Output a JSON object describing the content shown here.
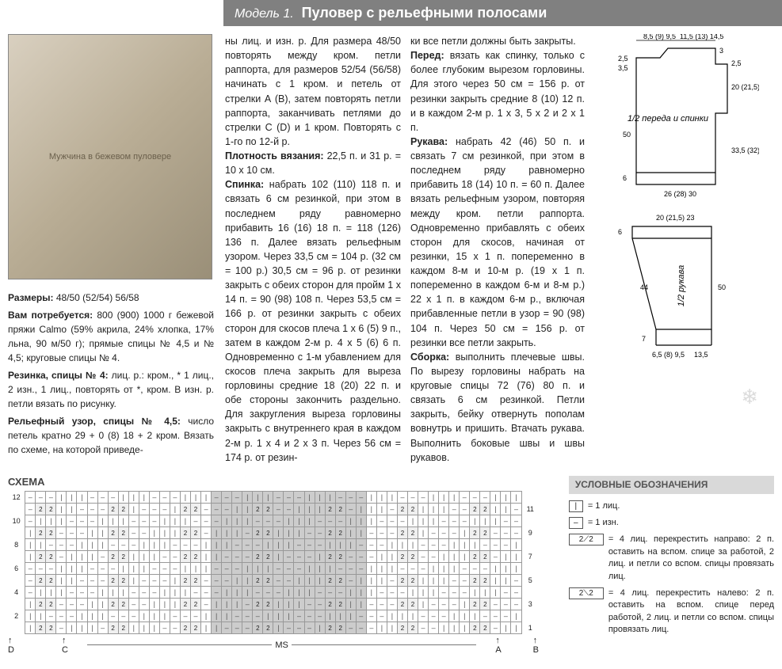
{
  "header": {
    "model": "Модель 1.",
    "title": "Пуловер с рельефными полосами"
  },
  "photo_alt": "Мужчина в бежевом пуловере",
  "left": {
    "sizes_label": "Размеры:",
    "sizes": "48/50 (52/54) 56/58",
    "need_label": "Вам потребуется:",
    "need": "800 (900) 1000 г бежевой пряжи Calmo (59% акрила, 24% хлопка, 17% льна, 90 м/50 г); прямые спицы № 4,5 и № 4,5; круговые спицы № 4.",
    "rib_label": "Резинка, спицы № 4:",
    "rib": "лиц. р.: кром., * 1 лиц., 2 изн., 1 лиц., повторять от *, кром. В изн. р. петли вязать по рисунку.",
    "relief_label": "Рельефный узор, спицы № 4,5:",
    "relief": "число петель кратно 29 + 0 (8) 18 + 2 кром. Вязать по схеме, на которой приведе-"
  },
  "col2": {
    "p1": "ны лиц. и изн. р. Для размера 48/50 повторять между кром. петли раппорта, для размеров 52/54 (56/58) начинать с 1 кром. и петель от стрелки А (В), затем повторять петли раппорта, заканчивать петлями до стрелки С (D) и 1 кром. Повторять с 1-го по 12-й р.",
    "density_label": "Плотность вязания:",
    "density": "22,5 п. и 31 р. = 10 x 10 см.",
    "back_label": "Спинка:",
    "back": "набрать 102 (110) 118 п. и связать 6 см резинкой, при этом в последнем ряду равномерно прибавить 16 (16) 18 п. = 118 (126) 136 п. Далее вязать рельефным узором. Через 33,5 см = 104 р. (32 см = 100 р.) 30,5 см = 96 р. от резинки закрыть с обеих сторон для пройм 1 x 14 п. = 90 (98) 108 п. Через 53,5 см = 166 р. от резинки закрыть с обеих сторон для скосов плеча 1 x 6 (5) 9 п., затем в каждом 2-м р. 4 x 5 (6) 6 п. Одновременно с 1-м убавлением для скосов плеча закрыть для выреза горловины средние 18 (20) 22 п. и обе стороны закончить раздельно. Для закругления выреза горловины закрыть с внутреннего края в каждом 2-м р. 1 x 4 и 2 x 3 п. Через 56 см = 174 р. от резин-"
  },
  "col3": {
    "p1": "ки все петли должны быть закрыты.",
    "front_label": "Перед:",
    "front": "вязать как спинку, только с более глубоким вырезом горловины. Для этого через 50 см = 156 р. от резинки закрыть средние 8 (10) 12 п. и в каждом 2-м р. 1 x 3, 5 x 2 и 2 x 1 п.",
    "sleeve_label": "Рукава:",
    "sleeve": "набрать 42 (46) 50 п. и связать 7 см резинкой, при этом в последнем ряду равномерно прибавить 18 (14) 10 п. = 60 п. Далее вязать рельефным узором, повторяя между кром. петли раппорта. Одновременно прибавлять с обеих сторон для скосов, начиная от резинки, 15 x 1 п. попеременно в каждом 8-м и 10-м р. (19 x 1 п. попеременно в каждом 6-м и 8-м р.) 22 x 1 п. в каждом 6-м р., включая прибавленные петли в узор = 90 (98) 104 п. Через 50 см = 156 р. от резинки все петли закрыть.",
    "assembly_label": "Сборка:",
    "assembly": "выполнить плечевые швы. По вырезу горловины набрать на круговые спицы 72 (76) 80 п. и связать 6 см резинкой. Петли закрыть, бейку отвернуть пополам вовнутрь и пришить. Втачать рукава. Выполнить боковые швы и швы рукавов."
  },
  "diagrams": {
    "body": {
      "label": "1/2 переда и спинки",
      "top_left_nums": "8,5 (9) 9,5",
      "top_mid_nums": "11,5 (13) 14,5",
      "neck_left": "2,5",
      "neck_left2": "3,5",
      "right_armhole": "2,5",
      "right_h1": "20 (21,5) 23",
      "body_h": "50",
      "right_h2": "33,5 (32) 30,5",
      "hem": "6",
      "width": "26 (28) 30",
      "shoulder_arrow": "3"
    },
    "sleeve": {
      "label": "1/2 рукава",
      "top": "20 (21,5) 23",
      "top_h": "6",
      "main_h": "44",
      "right_h": "50",
      "cuff_h": "7",
      "cuff_w": "6,5 (8) 9,5",
      "cuff_w2": "13,5"
    }
  },
  "schema": {
    "title": "СХЕМА",
    "row_labels_left": [
      "12",
      "10",
      "8",
      "6",
      "4",
      "2"
    ],
    "row_labels_right": [
      "11",
      "9",
      "7",
      "5",
      "3",
      "1"
    ],
    "ms": "MS",
    "marks": {
      "d": "D",
      "c": "C",
      "a": "A",
      "b": "B"
    }
  },
  "legend": {
    "title": "УСЛОВНЫЕ ОБОЗНАЧЕНИЯ",
    "items": [
      {
        "sym": "|",
        "txt": "= 1 лиц.",
        "wide": false
      },
      {
        "sym": "–",
        "txt": "= 1 изн.",
        "wide": false
      },
      {
        "sym": "2⟋2",
        "txt": "= 4 лиц. перекрестить направо: 2 п. оставить на вспом. спице за работой, 2 лиц. и петли со вспом. спицы провязать лиц.",
        "wide": true
      },
      {
        "sym": "2⟍2",
        "txt": "= 4 лиц. перекрестить налево: 2 п. оставить на вспом. спице перед работой, 2 лиц. и петли со вспом. спицы провязать лиц.",
        "wide": true
      }
    ]
  },
  "colors": {
    "header_bg": "#808080",
    "grid_border": "#999999",
    "shade": "#cccccc",
    "text": "#222222"
  }
}
